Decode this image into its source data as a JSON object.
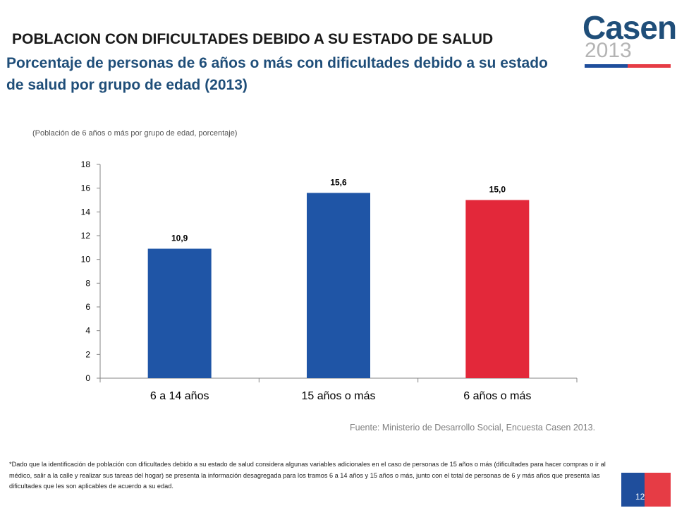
{
  "header": {
    "title": "POBLACION CON DIFICULTADES DEBIDO A SU ESTADO DE SALUD",
    "subtitle": "Porcentaje de personas de 6 años o más con dificultades debido a su estado de salud por grupo de edad (2013)"
  },
  "logo": {
    "word": "Casen",
    "year": "2013"
  },
  "chart_note": "(Población de 6 años o más por grupo de edad, porcentaje)",
  "chart_data": {
    "type": "bar",
    "categories": [
      "6 a 14 años",
      "15 años o más",
      "6 años o más"
    ],
    "values": [
      10.9,
      15.6,
      15.0
    ],
    "data_labels": [
      "10,9",
      "15,6",
      "15,0"
    ],
    "colors": [
      "#1f55a6",
      "#1f55a6",
      "#e3283a"
    ],
    "yticks": [
      0,
      2,
      4,
      6,
      8,
      10,
      12,
      14,
      16,
      18
    ],
    "ylim": [
      0,
      18
    ],
    "grid": false,
    "legend": "none",
    "title": "",
    "xlabel": "",
    "ylabel": ""
  },
  "source": "Fuente: Ministerio de Desarrollo Social, Encuesta Casen 2013.",
  "footnote": "*Dado que la identificación de población con dificultades debido a su estado de salud considera algunas variables adicionales en el caso de personas de 15 años o más (dificultades para hacer compras o ir al médico, salir a la calle y realizar sus tareas del hogar) se presenta la información desagregada para los tramos 6 a 14 años y 15 años o más, junto con el total de personas de 6 y más años que presenta las dificultades que les son aplicables de acuerdo a su edad.",
  "page_number": "12"
}
